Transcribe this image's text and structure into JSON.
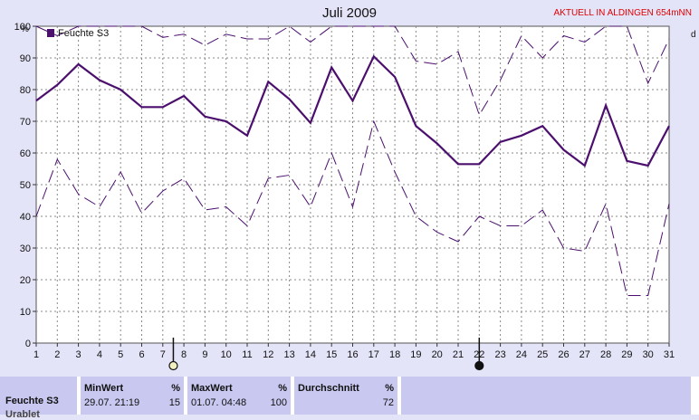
{
  "header": {
    "title": "Juli 2009",
    "live_label": "AKTUELL IN ALDINGEN 654mNN",
    "y_unit": "%",
    "right_unit": "d"
  },
  "chart_data": {
    "type": "line",
    "title": "Juli 2009",
    "xlabel": "",
    "ylabel": "%",
    "x": [
      1,
      2,
      3,
      4,
      5,
      6,
      7,
      8,
      9,
      10,
      11,
      12,
      13,
      14,
      15,
      16,
      17,
      18,
      19,
      20,
      21,
      22,
      23,
      24,
      25,
      26,
      27,
      28,
      29,
      30,
      31
    ],
    "xlim": [
      1,
      31
    ],
    "ylim": [
      0,
      100
    ],
    "yticks": [
      0,
      10,
      20,
      30,
      40,
      50,
      60,
      70,
      80,
      90,
      100
    ],
    "grid": true,
    "legend": "top-left",
    "series": [
      {
        "name": "Feuchte S3",
        "role": "mean",
        "color": "#4b0f6e",
        "values": [
          76.5,
          81.5,
          88,
          83,
          80,
          74.5,
          74.5,
          78,
          71.5,
          70,
          65.5,
          82.5,
          77,
          69.5,
          87,
          76.5,
          90.5,
          84,
          68.5,
          63,
          56.5,
          56.5,
          63.5,
          65.5,
          68.5,
          61,
          56,
          75,
          57.5,
          56,
          68.5
        ]
      },
      {
        "role": "max",
        "color": "#4b0f6e",
        "values": [
          100,
          97,
          100,
          100,
          100,
          100,
          96.5,
          97.5,
          94,
          97.5,
          96,
          96,
          100,
          95,
          100,
          100,
          100,
          100,
          89,
          88,
          92,
          72,
          83,
          97,
          90,
          97,
          95,
          100,
          100,
          82,
          96
        ]
      },
      {
        "role": "min",
        "color": "#4b0f6e",
        "values": [
          40,
          58,
          47,
          43,
          54,
          41,
          48,
          52,
          42,
          43,
          37,
          52,
          53,
          43,
          60,
          43,
          70,
          54,
          40,
          35,
          32,
          40,
          37,
          37,
          42,
          30,
          29,
          44,
          15,
          15,
          44
        ]
      }
    ],
    "markers": [
      {
        "x": 7.5,
        "symbol": "full-moon"
      },
      {
        "x": 22,
        "symbol": "new-moon"
      }
    ]
  },
  "stats": {
    "row_label": "Feuchte S3",
    "row_label_2": "Urablet",
    "min": {
      "header": "MinWert",
      "unit": "%",
      "when": "29.07.  21:19",
      "value": "15"
    },
    "max": {
      "header": "MaxWert",
      "unit": "%",
      "when": "01.07.  04:48",
      "value": "100"
    },
    "avg": {
      "header": "Durchschnitt",
      "unit": "%",
      "value": "72"
    }
  },
  "colors": {
    "background": "#e4e4f8",
    "plot_bg": "#ffffff",
    "series": "#4b0f6e",
    "grid": "#888888",
    "live": "#e00000",
    "stats_bg": "#c8c8f0"
  }
}
